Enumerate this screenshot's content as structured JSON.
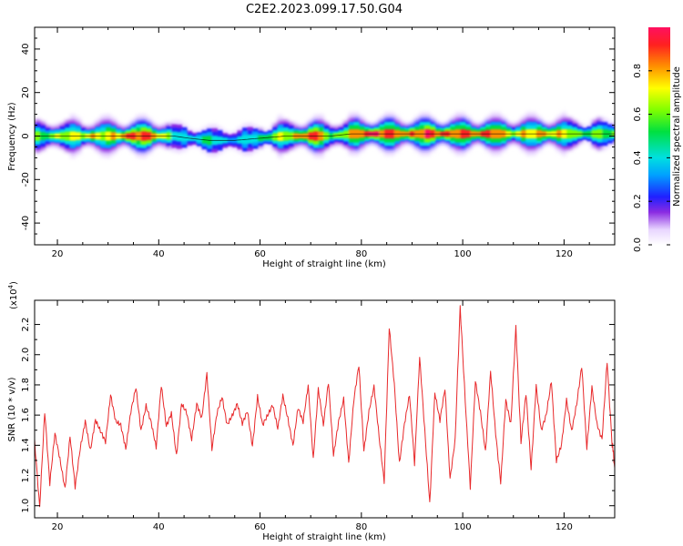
{
  "title": "C2E2.2023.099.17.50.G04",
  "chart_data": [
    {
      "type": "heatmap",
      "xlabel": "Height of straight line (km)",
      "ylabel": "Frequency (Hz)",
      "xlim": [
        15.5,
        130
      ],
      "ylim": [
        -50,
        50
      ],
      "xticks": [
        20,
        40,
        60,
        80,
        100,
        120
      ],
      "yticks": [
        -40,
        -20,
        0,
        20,
        40
      ],
      "colorbar": {
        "label": "Normalized spectral amplitude",
        "range": [
          0.0,
          1.0
        ],
        "ticks": [
          "0.0",
          "0.2",
          "0.4",
          "0.6",
          "0.8"
        ]
      },
      "ridge": {
        "x": [
          16,
          20,
          25,
          30,
          35,
          40,
          43,
          46,
          50,
          55,
          60,
          65,
          70,
          74,
          78,
          82,
          86,
          90,
          95,
          100,
          105,
          110,
          115,
          120,
          125,
          130
        ],
        "frequency": [
          0,
          0,
          0,
          0,
          0,
          0,
          0,
          -1,
          -2,
          -2,
          -1,
          0,
          0,
          0,
          1,
          1,
          1,
          1,
          1,
          1,
          1,
          1,
          1,
          1,
          1,
          1
        ],
        "amplitude": [
          0.6,
          0.75,
          0.7,
          0.8,
          0.95,
          0.85,
          0.55,
          0.45,
          0.5,
          0.45,
          0.5,
          0.75,
          0.95,
          0.6,
          0.85,
          0.95,
          0.9,
          0.95,
          0.9,
          0.95,
          0.85,
          0.8,
          0.85,
          0.75,
          0.6,
          0.55
        ]
      }
    },
    {
      "type": "line",
      "xlabel": "Height of straight line (km)",
      "ylabel": "SNR (10 * v/v)",
      "multiplier": "(x10",
      "multiplier_exp": "4",
      "multiplier_close": ")",
      "xlim": [
        15.5,
        130
      ],
      "ylim": [
        0.92,
        2.36
      ],
      "xticks": [
        20,
        40,
        60,
        80,
        100,
        120
      ],
      "yticks": [
        "1.0",
        "1.2",
        "1.4",
        "1.6",
        "1.8",
        "2.0",
        "2.2"
      ],
      "color": "#e8282a",
      "series": [
        {
          "x": [
            15.5,
            16.5,
            17.5,
            18.5,
            19.5,
            20.5,
            21.5,
            22.5,
            23.5,
            24.5,
            25.5,
            26.5,
            27.5,
            28.5,
            29.5,
            30.5,
            31.5,
            32.5,
            33.5,
            34.5,
            35.5,
            36.5,
            37.5,
            38.5,
            39.5,
            40.5,
            41.5,
            42.5,
            43.5,
            44.5,
            45.5,
            46.5,
            47.5,
            48.5,
            49.5,
            50.5,
            51.5,
            52.5,
            53.5,
            54.5,
            55.5,
            56.5,
            57.5,
            58.5,
            59.5,
            60.5,
            61.5,
            62.5,
            63.5,
            64.5,
            65.5,
            66.5,
            67.5,
            68.5,
            69.5,
            70.5,
            71.5,
            72.5,
            73.5,
            74.5,
            75.5,
            76.5,
            77.5,
            78.5,
            79.5,
            80.5,
            81.5,
            82.5,
            83.5,
            84.5,
            85.5,
            86.5,
            87.5,
            88.5,
            89.5,
            90.5,
            91.5,
            92.5,
            93.5,
            94.5,
            95.5,
            96.5,
            97.5,
            98.5,
            99.5,
            100.5,
            101.5,
            102.5,
            103.5,
            104.5,
            105.5,
            106.5,
            107.5,
            108.5,
            109.5,
            110.5,
            111.5,
            112.5,
            113.5,
            114.5,
            115.5,
            116.5,
            117.5,
            118.5,
            119.5,
            120.5,
            121.5,
            122.5,
            123.5,
            124.5,
            125.5,
            126.5,
            127.5,
            128.5,
            129.5,
            130
          ],
          "y": [
            1.43,
            0.98,
            1.6,
            1.12,
            1.46,
            1.3,
            1.12,
            1.48,
            1.15,
            1.4,
            1.57,
            1.36,
            1.55,
            1.47,
            1.4,
            1.72,
            1.56,
            1.55,
            1.4,
            1.65,
            1.8,
            1.5,
            1.65,
            1.53,
            1.36,
            1.78,
            1.52,
            1.62,
            1.35,
            1.7,
            1.64,
            1.45,
            1.67,
            1.56,
            1.85,
            1.35,
            1.6,
            1.72,
            1.55,
            1.62,
            1.7,
            1.56,
            1.63,
            1.38,
            1.7,
            1.51,
            1.58,
            1.66,
            1.52,
            1.75,
            1.6,
            1.42,
            1.66,
            1.55,
            1.78,
            1.28,
            1.75,
            1.52,
            1.82,
            1.35,
            1.58,
            1.73,
            1.3,
            1.7,
            1.92,
            1.34,
            1.6,
            1.77,
            1.45,
            1.17,
            2.2,
            1.83,
            1.3,
            1.55,
            1.73,
            1.26,
            1.96,
            1.48,
            1.0,
            1.75,
            1.58,
            1.8,
            1.2,
            1.45,
            2.32,
            1.68,
            1.1,
            1.8,
            1.6,
            1.35,
            1.9,
            1.5,
            1.18,
            1.72,
            1.55,
            2.18,
            1.4,
            1.72,
            1.22,
            1.78,
            1.5,
            1.62,
            1.85,
            1.32,
            1.42,
            1.7,
            1.48,
            1.65,
            1.9,
            1.36,
            1.78,
            1.55,
            1.46,
            1.98,
            1.42,
            1.25
          ]
        }
      ]
    }
  ]
}
